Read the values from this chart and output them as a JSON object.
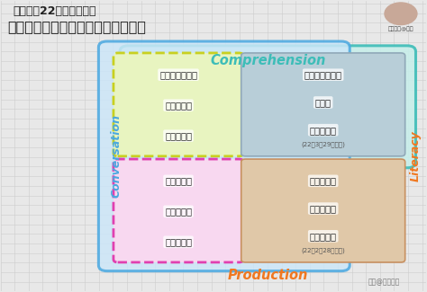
{
  "title_line1": "多邻国．22年春季题改后",
  "title_line2": "【全部题型】与【各小分对应题型】",
  "bg_color": "#e8e8e8",
  "grid_color": "#cccccc",
  "comprehension_label": "Comprehension",
  "production_label": "Production",
  "conversation_label": "Conversation",
  "literacy_label": "Literacy",
  "comprehension_color": "#3dbdb8",
  "production_color": "#f07820",
  "conversation_color": "#4aa8e0",
  "literacy_color": "#f07820",
  "top_left_border_color": "#c8d020",
  "bottom_left_border_color": "#e040b0",
  "watermark": "知乎@米斯特潘",
  "avatar_text": "米斯特潘@知乎",
  "top_left_items": [
    "单词发音判断题",
    "句子听写题",
    "句子朗读题"
  ],
  "top_right_items": [
    "单词拼写判断题",
    "填空题",
    "互动阅读题",
    "(22年3月29日上线)"
  ],
  "bottom_left_items": [
    "看图口语题",
    "看题口语题",
    "听题口语题"
  ],
  "bottom_right_items": [
    "看图写作题",
    "看题写作题",
    "写作样本题",
    "(22年2月28日计分)"
  ]
}
